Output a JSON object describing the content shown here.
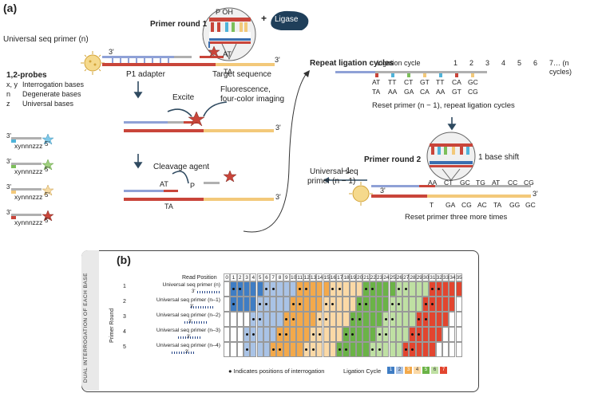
{
  "panel_a": {
    "label": "(a)",
    "primer_round_1": "Primer round 1",
    "p_oh": "P OH",
    "ligase": "Ligase",
    "plus": "+",
    "universal_primer": "Universal seq primer (n)",
    "three_prime": "3'",
    "at": "AT",
    "ta": "TA",
    "p1_adapter": "P1 adapter",
    "target_sequence": "Target sequence",
    "excite": "Excite",
    "fluorescence": "Fluorescence,",
    "four_color": "four-color imaging",
    "cleavage_agent": "Cleavage agent",
    "p": "P",
    "repeat_ligation": "Repeat ligation cycles",
    "ligation_cycle": "Ligation cycle",
    "cycle_numbers": [
      "1",
      "2",
      "3",
      "4",
      "5",
      "6",
      "7… (n"
    ],
    "cycles_word": "cycles)",
    "pairs_top": [
      "AT",
      "TT",
      "CT",
      "GT",
      "TT",
      "CA",
      "GC"
    ],
    "pairs_bottom": [
      "TA",
      "AA",
      "GA",
      "CA",
      "AA",
      "GT",
      "CG"
    ],
    "reset_primer_text": "Reset primer (n − 1), repeat ligation cycles",
    "primer_round_2": "Primer round 2",
    "base_shift": "1 base shift",
    "minus_one": "–1",
    "universal_primer_n1_line1": "Universal seq",
    "universal_primer_n1_line2": "primer (n − 1)",
    "round2_top": [
      "AA",
      "CT",
      "GC",
      "TG",
      "AT",
      "CC",
      "CG"
    ],
    "round2_bottom": [
      "T",
      "GA",
      "CG",
      "AC",
      "TA",
      "GG",
      "GC"
    ],
    "reset_three_more": "Reset primer three more times"
  },
  "probes": {
    "title": "1,2-probes",
    "legend": [
      {
        "key": "x, y",
        "desc": "Interrogation bases"
      },
      {
        "key": "n",
        "desc": "Degenerate bases"
      },
      {
        "key": "z",
        "desc": "Universal bases"
      }
    ],
    "three": "3'",
    "five": "5'",
    "sequence": "xynnnzzz",
    "colors": [
      "#4fb3d9",
      "#7cbf5a",
      "#f3c97a",
      "#c9453a"
    ]
  },
  "panel_b": {
    "label": "(b)",
    "side_label": "DUAL INTERROGATION OF EACH BASE",
    "read_position": "Read Position",
    "primer_round_label": "Primer Round",
    "positions": [
      "0",
      "1",
      "2",
      "3",
      "4",
      "5",
      "6",
      "7",
      "8",
      "9",
      "10",
      "11",
      "12",
      "13",
      "14",
      "15",
      "16",
      "17",
      "18",
      "19",
      "20",
      "21",
      "22",
      "23",
      "24",
      "25",
      "26",
      "27",
      "28",
      "29",
      "30",
      "31",
      "32",
      "33",
      "34",
      "35"
    ],
    "rows": [
      {
        "round": "1",
        "primer": "Universal seq primer (n)"
      },
      {
        "round": "2",
        "primer": "Universal seq primer (n–1)"
      },
      {
        "round": "3",
        "primer": "Universal seq primer (n–2)"
      },
      {
        "round": "4",
        "primer": "Universal seq primer (n–3)"
      },
      {
        "round": "5",
        "primer": "Universal seq primer (n–4)"
      }
    ],
    "three": "3'",
    "legend_interrogation": "● Indicates positions of interrogation",
    "legend_ligation": "Ligation Cycle",
    "cycles": [
      "1",
      "2",
      "3",
      "4",
      "5",
      "6",
      "7"
    ],
    "cycle_colors": [
      "#3f7dc4",
      "#a9c3e6",
      "#f3a94b",
      "#fbd9a6",
      "#6bb347",
      "#bfe0a3",
      "#e2452f"
    ]
  }
}
